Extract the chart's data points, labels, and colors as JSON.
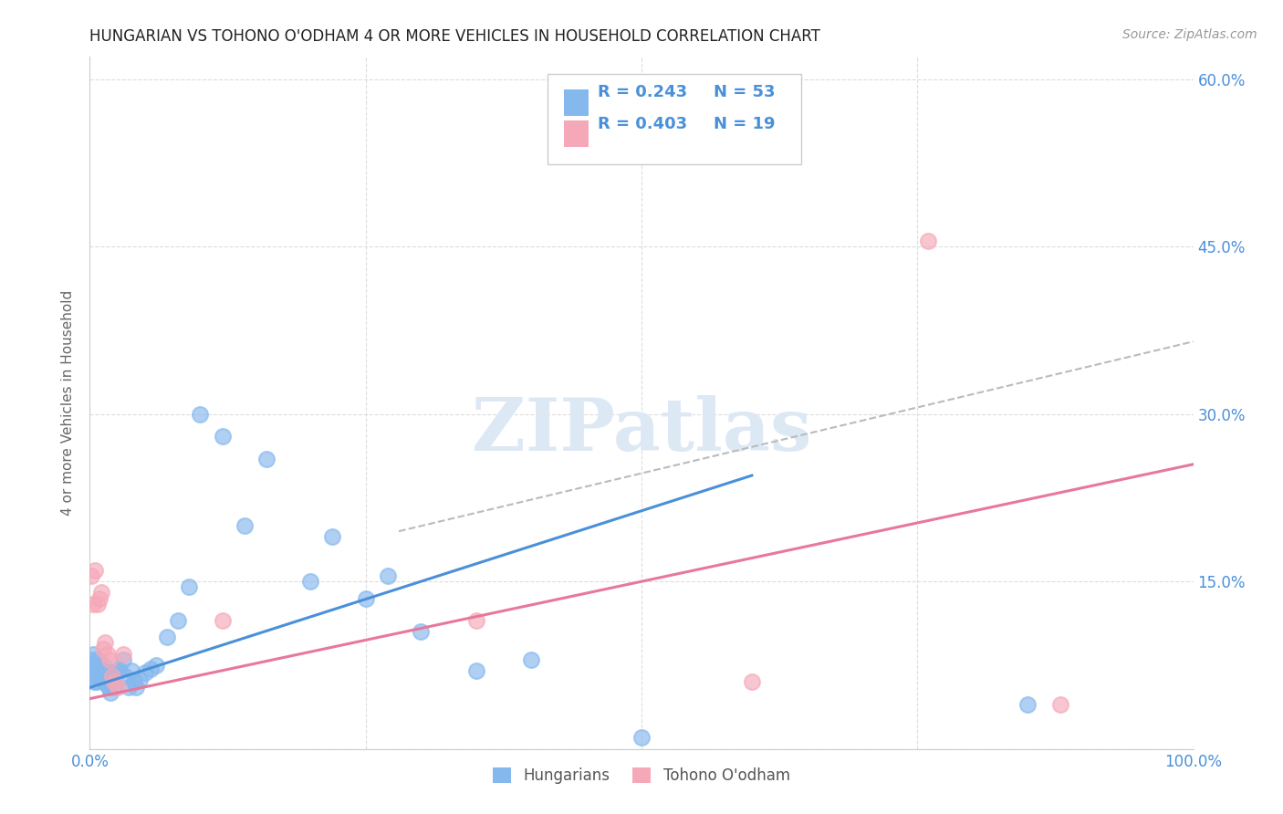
{
  "title": "HUNGARIAN VS TOHONO O'ODHAM 4 OR MORE VEHICLES IN HOUSEHOLD CORRELATION CHART",
  "source": "Source: ZipAtlas.com",
  "ylabel": "4 or more Vehicles in Household",
  "xlim": [
    0,
    1.0
  ],
  "ylim": [
    0,
    0.62
  ],
  "xticks": [
    0.0,
    0.25,
    0.5,
    0.75,
    1.0
  ],
  "xticklabels": [
    "0.0%",
    "",
    "",
    "",
    "100.0%"
  ],
  "yticks": [
    0.0,
    0.15,
    0.3,
    0.45,
    0.6
  ],
  "yticklabels_right": [
    "",
    "15.0%",
    "30.0%",
    "45.0%",
    "60.0%"
  ],
  "grid_color": "#dddddd",
  "background_color": "#ffffff",
  "watermark_text": "ZIPatlas",
  "blue_color": "#85b8ed",
  "pink_color": "#f5a8b8",
  "blue_line_color": "#4a90d9",
  "pink_line_color": "#e8789a",
  "dash_line_color": "#bbbbbb",
  "text_color": "#4a90d9",
  "legend_r_blue": "R = 0.243",
  "legend_n_blue": "N = 53",
  "legend_r_pink": "R = 0.403",
  "legend_n_pink": "N = 19",
  "legend_label_blue": "Hungarians",
  "legend_label_pink": "Tohono O'odham",
  "hungarian_x": [
    0.001,
    0.002,
    0.003,
    0.003,
    0.004,
    0.005,
    0.005,
    0.006,
    0.007,
    0.008,
    0.009,
    0.01,
    0.011,
    0.012,
    0.013,
    0.014,
    0.015,
    0.016,
    0.017,
    0.018,
    0.019,
    0.02,
    0.021,
    0.022,
    0.023,
    0.025,
    0.027,
    0.03,
    0.032,
    0.035,
    0.038,
    0.04,
    0.042,
    0.045,
    0.05,
    0.055,
    0.06,
    0.07,
    0.08,
    0.09,
    0.1,
    0.12,
    0.14,
    0.16,
    0.2,
    0.22,
    0.25,
    0.27,
    0.3,
    0.35,
    0.4,
    0.5,
    0.85
  ],
  "hungarian_y": [
    0.075,
    0.08,
    0.085,
    0.07,
    0.06,
    0.075,
    0.065,
    0.06,
    0.08,
    0.07,
    0.065,
    0.072,
    0.068,
    0.075,
    0.06,
    0.065,
    0.058,
    0.062,
    0.055,
    0.058,
    0.05,
    0.068,
    0.06,
    0.055,
    0.065,
    0.072,
    0.07,
    0.08,
    0.065,
    0.055,
    0.07,
    0.06,
    0.055,
    0.062,
    0.068,
    0.072,
    0.075,
    0.1,
    0.115,
    0.145,
    0.3,
    0.28,
    0.2,
    0.26,
    0.15,
    0.19,
    0.135,
    0.155,
    0.105,
    0.07,
    0.08,
    0.01,
    0.04
  ],
  "tohono_x": [
    0.001,
    0.003,
    0.005,
    0.007,
    0.009,
    0.01,
    0.012,
    0.014,
    0.016,
    0.018,
    0.02,
    0.022,
    0.025,
    0.03,
    0.12,
    0.35,
    0.6,
    0.76,
    0.88
  ],
  "tohono_y": [
    0.155,
    0.13,
    0.16,
    0.13,
    0.135,
    0.14,
    0.09,
    0.095,
    0.085,
    0.08,
    0.065,
    0.06,
    0.055,
    0.085,
    0.115,
    0.115,
    0.06,
    0.455,
    0.04
  ],
  "blue_line_x": [
    0.0,
    0.6
  ],
  "blue_line_y": [
    0.055,
    0.245
  ],
  "pink_line_x": [
    0.0,
    1.0
  ],
  "pink_line_y": [
    0.045,
    0.255
  ],
  "dash_line_x": [
    0.28,
    1.0
  ],
  "dash_line_y": [
    0.195,
    0.365
  ]
}
